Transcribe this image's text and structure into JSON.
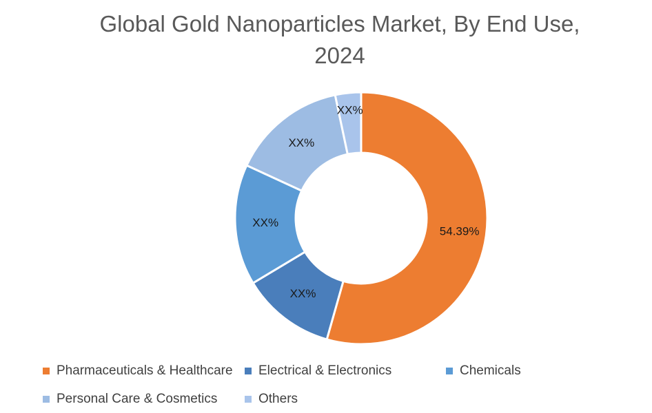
{
  "chart_data": {
    "type": "pie",
    "variant": "donut",
    "title": "Global Gold Nanoparticles Market, By End Use, 2024",
    "title_lines": [
      "Global Gold Nanoparticles Market, By End Use,",
      "2024"
    ],
    "categories": [
      "Pharmaceuticals & Healthcare",
      "Electrical & Electronics",
      "Chemicals",
      "Personal Care & Cosmetics",
      "Others"
    ],
    "values": [
      54.39,
      12.0,
      15.5,
      14.8,
      3.31
    ],
    "labels": [
      "54.39%",
      "XX%",
      "XX%",
      "XX%",
      "XX%"
    ],
    "colors": [
      "#ED7D31",
      "#4A7EBB",
      "#5B9BD5",
      "#9DBCE3",
      "#A9C4EB"
    ],
    "legend_position": "bottom"
  }
}
